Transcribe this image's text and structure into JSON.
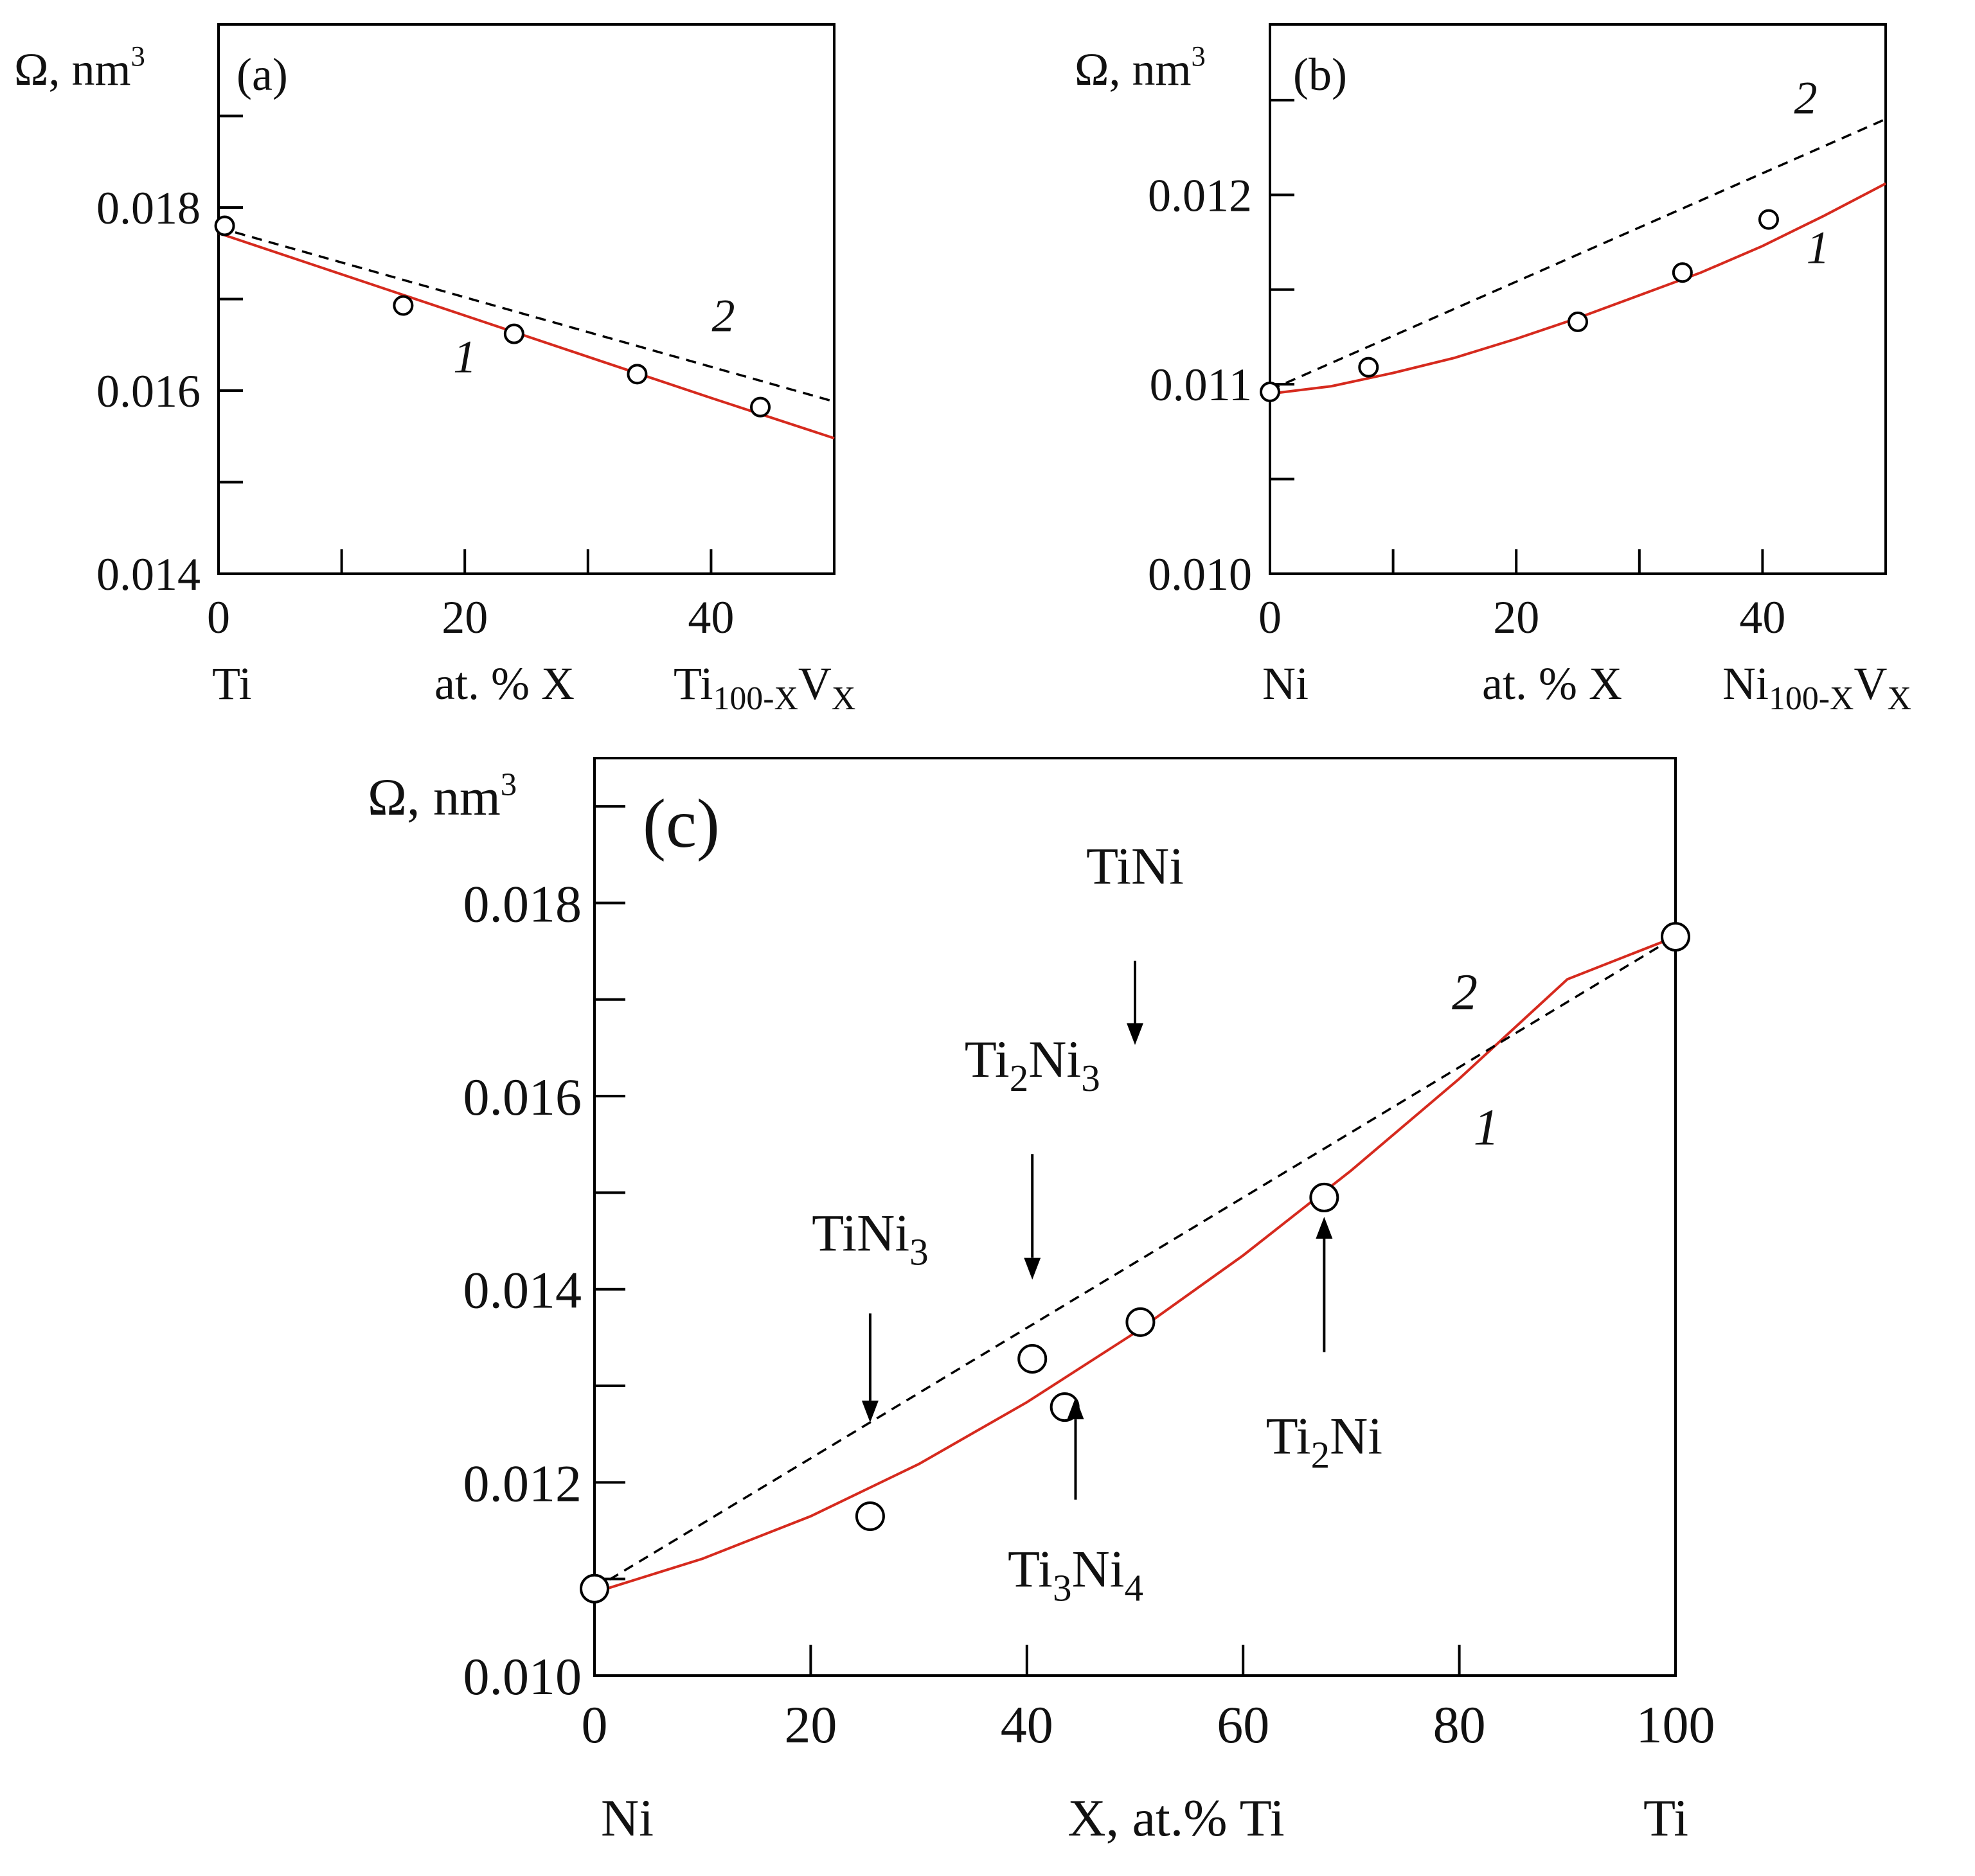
{
  "colors": {
    "curve_1": "#d62a1e",
    "curve_2": "#000000",
    "axes": "#000000",
    "background": "#ffffff"
  },
  "chart_data": [
    {
      "panel": "(a)",
      "type": "scatter",
      "ylabel_main": "Ω, nm",
      "ylabel_sup": "3",
      "xlim": [
        0,
        50
      ],
      "ylim": [
        0.014,
        0.02
      ],
      "x_ticks": [
        0,
        10,
        20,
        30,
        40,
        50
      ],
      "x_ticklabels": [
        "0",
        "20",
        "40"
      ],
      "x_ticklabel_values": [
        0,
        20,
        40
      ],
      "y_ticks": [
        0.014,
        0.015,
        0.016,
        0.017,
        0.018,
        0.019
      ],
      "y_ticklabels": [
        "0.014",
        "0.016",
        "0.018"
      ],
      "y_ticklabel_values": [
        0.014,
        0.016,
        0.018
      ],
      "x_left_label": "Ti",
      "x_center_label": "at. % X",
      "x_right_label": {
        "base": "Ti",
        "sub": "100-X",
        "mid": "V",
        "sub2": "X"
      },
      "points": {
        "x": [
          0.5,
          15,
          24,
          34,
          44
        ],
        "y": [
          0.0178,
          0.01693,
          0.01662,
          0.01618,
          0.01582
        ]
      },
      "series": [
        {
          "label": "1",
          "style": "solid-red",
          "x": [
            0,
            10,
            20,
            30,
            40,
            50
          ],
          "y": [
            0.01772,
            0.01727,
            0.01682,
            0.01637,
            0.01592,
            0.01548
          ]
        },
        {
          "label": "2",
          "style": "dashed-black",
          "x": [
            0,
            50
          ],
          "y": [
            0.01778,
            0.01588
          ]
        }
      ],
      "series_labels": [
        {
          "text": "1",
          "x": 20,
          "y": 0.0162
        },
        {
          "text": "2",
          "x": 41,
          "y": 0.01665
        }
      ]
    },
    {
      "panel": "(b)",
      "type": "scatter",
      "ylabel_main": "Ω, nm",
      "ylabel_sup": "3",
      "xlim": [
        0,
        50
      ],
      "ylim": [
        0.01,
        0.0129
      ],
      "x_ticks": [
        0,
        10,
        20,
        30,
        40,
        50
      ],
      "x_ticklabels": [
        "0",
        "20",
        "40"
      ],
      "x_ticklabel_values": [
        0,
        20,
        40
      ],
      "y_ticks": [
        0.01,
        0.0105,
        0.011,
        0.0115,
        0.012,
        0.0125
      ],
      "y_ticklabels": [
        "0.010",
        "0.011",
        "0.012"
      ],
      "y_ticklabel_values": [
        0.01,
        0.011,
        0.012
      ],
      "x_left_label": "Ni",
      "x_center_label": "at. % X",
      "x_right_label": {
        "base": "Ni",
        "sub": "100-X",
        "mid": "V",
        "sub2": "X"
      },
      "points": {
        "x": [
          0,
          8,
          25,
          33.5,
          40.5
        ],
        "y": [
          0.01096,
          0.01109,
          0.01133,
          0.01159,
          0.01187
        ]
      },
      "series": [
        {
          "label": "1",
          "style": "solid-red",
          "x": [
            0,
            5,
            10,
            15,
            20,
            25,
            30,
            35,
            40,
            45,
            50
          ],
          "y": [
            0.01095,
            0.01099,
            0.01106,
            0.01114,
            0.01124,
            0.01135,
            0.01147,
            0.01159,
            0.01173,
            0.01189,
            0.01206
          ]
        },
        {
          "label": "2",
          "style": "dashed-black",
          "x": [
            0,
            50
          ],
          "y": [
            0.01097,
            0.0124
          ]
        }
      ],
      "series_labels": [
        {
          "text": "1",
          "x": 44.5,
          "y": 0.01164
        },
        {
          "text": "2",
          "x": 43.5,
          "y": 0.01243
        }
      ]
    },
    {
      "panel": "(c)",
      "type": "scatter",
      "ylabel_main": "Ω, nm",
      "ylabel_sup": "3",
      "xlim": [
        0,
        100
      ],
      "ylim": [
        0.01,
        0.0195
      ],
      "x_ticks": [
        0,
        20,
        40,
        60,
        80,
        100
      ],
      "x_ticklabels": [
        "0",
        "20",
        "40",
        "60",
        "80",
        "100"
      ],
      "x_ticklabel_values": [
        0,
        20,
        40,
        60,
        80,
        100
      ],
      "y_ticks": [
        0.01,
        0.011,
        0.012,
        0.013,
        0.014,
        0.015,
        0.016,
        0.017,
        0.018,
        0.019
      ],
      "y_ticklabels": [
        "0.010",
        "0.012",
        "0.014",
        "0.016",
        "0.018"
      ],
      "y_ticklabel_values": [
        0.01,
        0.012,
        0.014,
        0.016,
        0.018
      ],
      "x_left_label": "Ni",
      "x_center_label": "X, at.% Ti",
      "x_right_label_plain": "Ti",
      "points": {
        "x": [
          0,
          25.5,
          40.5,
          43.5,
          50.5,
          67.5,
          100
        ],
        "y": [
          0.0109,
          0.01165,
          0.01328,
          0.01278,
          0.01366,
          0.01495,
          0.01765
        ]
      },
      "series": [
        {
          "label": "1",
          "style": "solid-red",
          "x": [
            0,
            10,
            20,
            30,
            40,
            50,
            60,
            70,
            80,
            90,
            100
          ],
          "y": [
            0.01086,
            0.01121,
            0.01165,
            0.01219,
            0.01283,
            0.01355,
            0.01435,
            0.01523,
            0.01618,
            0.01721,
            0.01765
          ]
        },
        {
          "label": "2",
          "style": "dashed-black",
          "x": [
            0,
            100
          ],
          "y": [
            0.0109,
            0.01765
          ]
        }
      ],
      "series_labels": [
        {
          "text": "1",
          "x": 82.5,
          "y": 0.0155
        },
        {
          "text": "2",
          "x": 80.5,
          "y": 0.0169
        }
      ],
      "annotations": [
        {
          "parts": [
            {
              "t": "TiNi",
              "s": false
            }
          ],
          "direction": "down",
          "x": 50,
          "label_y": 0.0182,
          "from_y": 0.0174,
          "to_y": 0.01653
        },
        {
          "parts": [
            {
              "t": "Ti",
              "s": false
            },
            {
              "t": "2",
              "s": true
            },
            {
              "t": "Ni",
              "s": false
            },
            {
              "t": "3",
              "s": true
            }
          ],
          "direction": "down",
          "x": 40.5,
          "label_y": 0.0162,
          "from_y": 0.0154,
          "to_y": 0.0141
        },
        {
          "parts": [
            {
              "t": "TiNi",
              "s": false
            },
            {
              "t": "3",
              "s": true
            }
          ],
          "direction": "down",
          "x": 25.5,
          "label_y": 0.0144,
          "from_y": 0.01375,
          "to_y": 0.01262
        },
        {
          "parts": [
            {
              "t": "Ti",
              "s": false
            },
            {
              "t": "3",
              "s": true
            },
            {
              "t": "Ni",
              "s": false
            },
            {
              "t": "4",
              "s": true
            }
          ],
          "direction": "up",
          "x": 44.5,
          "label_y": 0.01092,
          "from_y": 0.01182,
          "to_y": 0.01288
        },
        {
          "parts": [
            {
              "t": "Ti",
              "s": false
            },
            {
              "t": "2",
              "s": true
            },
            {
              "t": "Ni",
              "s": false
            }
          ],
          "direction": "up",
          "x": 67.5,
          "label_y": 0.0123,
          "from_y": 0.01335,
          "to_y": 0.01475
        }
      ]
    }
  ]
}
